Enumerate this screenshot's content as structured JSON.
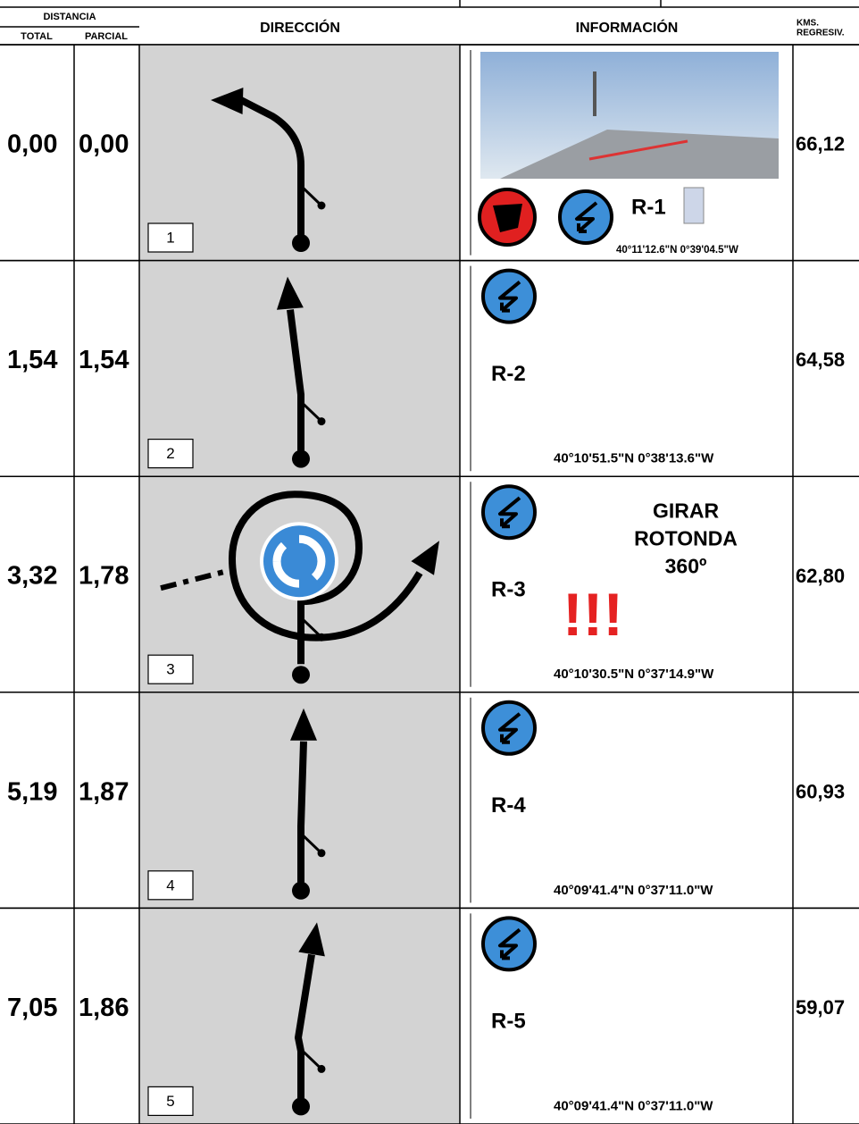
{
  "header": {
    "distance": "DISTANCIA",
    "total": "TOTAL",
    "partial": "PARCIAL",
    "direction": "DIRECCIÓN",
    "information": "INFORMACIÓN",
    "kms": [
      "KMS.",
      "REGRESIV."
    ]
  },
  "rows": [
    {
      "total": "0,00",
      "partial": "0,00",
      "step": "1",
      "ref": "R-1",
      "coords": "40°11'12.6\"N 0°39'04.5\"W",
      "kms": "66,12"
    },
    {
      "total": "1,54",
      "partial": "1,54",
      "step": "2",
      "ref": "R-2",
      "coords": "40°10'51.5\"N 0°38'13.6\"W",
      "kms": "64,58"
    },
    {
      "total": "3,32",
      "partial": "1,78",
      "step": "3",
      "ref": "R-3",
      "coords": "40°10'30.5\"N 0°37'14.9\"W",
      "note": [
        "GIRAR",
        "ROTONDA",
        "360º"
      ],
      "warning": "!!!",
      "kms": "62,80"
    },
    {
      "total": "5,19",
      "partial": "1,87",
      "step": "4",
      "ref": "R-4",
      "coords": "40°09'41.4\"N 0°37'11.0\"W",
      "kms": "60,93"
    },
    {
      "total": "7,05",
      "partial": "1,86",
      "step": "5",
      "ref": "R-5",
      "coords": "40°09'41.4\"N 0°37'11.0\"W",
      "kms": "59,07"
    }
  ]
}
